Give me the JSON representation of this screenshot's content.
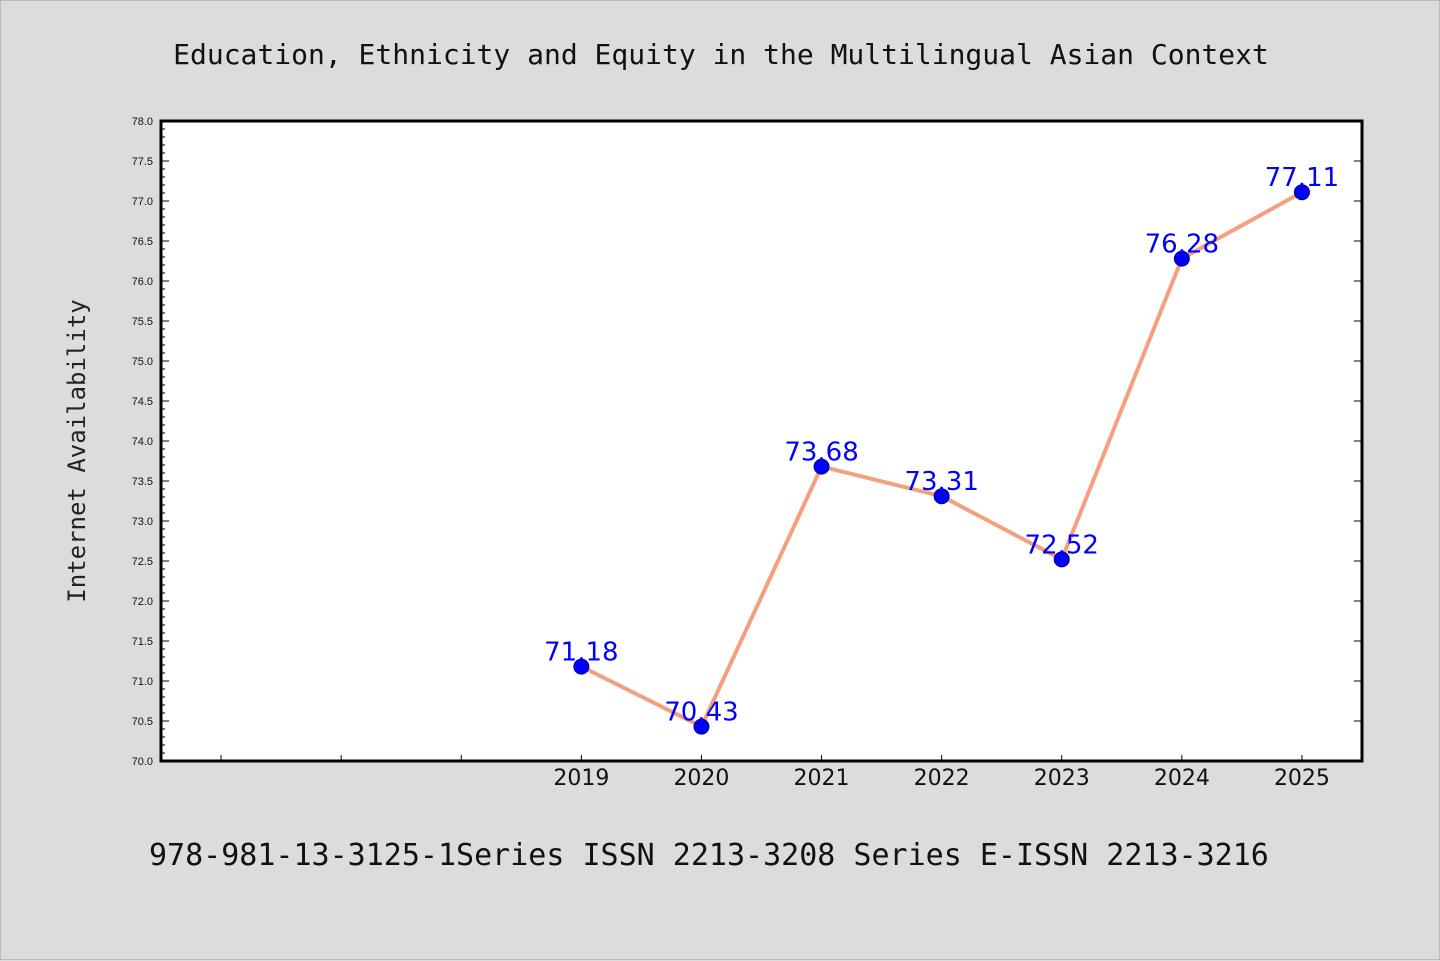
{
  "chart_data": {
    "type": "line",
    "title": "Education, Ethnicity and Equity in the Multilingual Asian Context",
    "xlabel": "",
    "ylabel": "Internet Availability",
    "x": [
      "2019",
      "2020",
      "2021",
      "2022",
      "2023",
      "2024",
      "2025"
    ],
    "series": [
      {
        "values": [
          71.18,
          70.43,
          73.68,
          73.31,
          72.52,
          76.28,
          77.11
        ]
      }
    ],
    "data_labels": [
      "71.18",
      "70.43",
      "73.68",
      "73.31",
      "72.52",
      "76.28",
      "77.11"
    ],
    "ylim": [
      70.0,
      78.0
    ],
    "yticks": [
      "70.0",
      "70.5",
      "71.0",
      "71.5",
      "72.0",
      "72.5",
      "73.0",
      "73.5",
      "74.0",
      "74.5",
      "75.0",
      "75.5",
      "76.0",
      "76.5",
      "77.0",
      "77.5",
      "78.0"
    ],
    "grid": false,
    "colors": {
      "line": "#f4a07e",
      "marker": "#0000ff",
      "label": "#0000ff",
      "background": "#dcdcdc",
      "plot_area": "#ffffff"
    }
  },
  "footer": {
    "text": "978-981-13-3125-1Series ISSN 2213-3208 Series E-ISSN 2213-3216"
  }
}
